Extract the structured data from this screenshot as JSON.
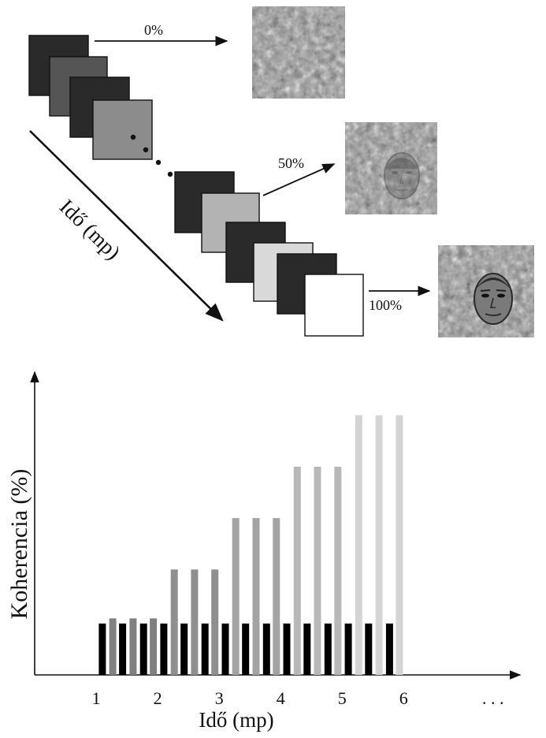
{
  "diagram": {
    "arrow_labels": [
      "0%",
      "50%",
      "100%"
    ],
    "time_axis_label": "Idő (mp)",
    "frame_fills": [
      "#2a2a2a",
      "#555555",
      "#2a2a2a",
      "#8c8c8c",
      "#2a2a2a",
      "#b3b3b3",
      "#2a2a2a",
      "#d9d9d9",
      "#2a2a2a",
      "#ffffff"
    ],
    "coherence_images": [
      {
        "label": "0%",
        "face_visible": false
      },
      {
        "label": "50%",
        "face_visible": true,
        "face_strength": 0.5
      },
      {
        "label": "100%",
        "face_visible": true,
        "face_strength": 1.0
      }
    ]
  },
  "chart_data": {
    "type": "bar",
    "xlabel": "Idő (mp)",
    "ylabel": "Koherencia (%)",
    "x_ticks": [
      "1",
      "2",
      "3",
      "4",
      "5",
      "6"
    ],
    "x_ellipsis": ". . .",
    "xlim": [
      0.0,
      7.6
    ],
    "ylim": [
      0,
      100
    ],
    "black_bar_level": 20,
    "bars": [
      {
        "x": 1.1,
        "value": 20,
        "kind": "mask"
      },
      {
        "x": 1.27,
        "value": 22,
        "kind": "face",
        "color": "#808080"
      },
      {
        "x": 1.43,
        "value": 20,
        "kind": "mask"
      },
      {
        "x": 1.6,
        "value": 22,
        "kind": "face",
        "color": "#808080"
      },
      {
        "x": 1.77,
        "value": 20,
        "kind": "mask"
      },
      {
        "x": 1.93,
        "value": 22,
        "kind": "face",
        "color": "#808080"
      },
      {
        "x": 2.1,
        "value": 20,
        "kind": "mask"
      },
      {
        "x": 2.27,
        "value": 41,
        "kind": "face",
        "color": "#8f8f8f"
      },
      {
        "x": 2.43,
        "value": 20,
        "kind": "mask"
      },
      {
        "x": 2.6,
        "value": 41,
        "kind": "face",
        "color": "#8f8f8f"
      },
      {
        "x": 2.77,
        "value": 20,
        "kind": "mask"
      },
      {
        "x": 2.93,
        "value": 41,
        "kind": "face",
        "color": "#8f8f8f"
      },
      {
        "x": 3.1,
        "value": 20,
        "kind": "mask"
      },
      {
        "x": 3.27,
        "value": 61,
        "kind": "face",
        "color": "#a3a3a3"
      },
      {
        "x": 3.43,
        "value": 20,
        "kind": "mask"
      },
      {
        "x": 3.6,
        "value": 61,
        "kind": "face",
        "color": "#a3a3a3"
      },
      {
        "x": 3.77,
        "value": 20,
        "kind": "mask"
      },
      {
        "x": 3.93,
        "value": 61,
        "kind": "face",
        "color": "#a3a3a3"
      },
      {
        "x": 4.1,
        "value": 20,
        "kind": "mask"
      },
      {
        "x": 4.27,
        "value": 81,
        "kind": "face",
        "color": "#b8b8b8"
      },
      {
        "x": 4.43,
        "value": 20,
        "kind": "mask"
      },
      {
        "x": 4.6,
        "value": 81,
        "kind": "face",
        "color": "#b8b8b8"
      },
      {
        "x": 4.77,
        "value": 20,
        "kind": "mask"
      },
      {
        "x": 4.93,
        "value": 81,
        "kind": "face",
        "color": "#b8b8b8"
      },
      {
        "x": 5.1,
        "value": 20,
        "kind": "mask"
      },
      {
        "x": 5.27,
        "value": 101,
        "kind": "face",
        "color": "#d4d4d4"
      },
      {
        "x": 5.43,
        "value": 20,
        "kind": "mask"
      },
      {
        "x": 5.6,
        "value": 101,
        "kind": "face",
        "color": "#d4d4d4"
      },
      {
        "x": 5.77,
        "value": 20,
        "kind": "mask"
      },
      {
        "x": 5.93,
        "value": 101,
        "kind": "face",
        "color": "#d4d4d4"
      }
    ]
  }
}
